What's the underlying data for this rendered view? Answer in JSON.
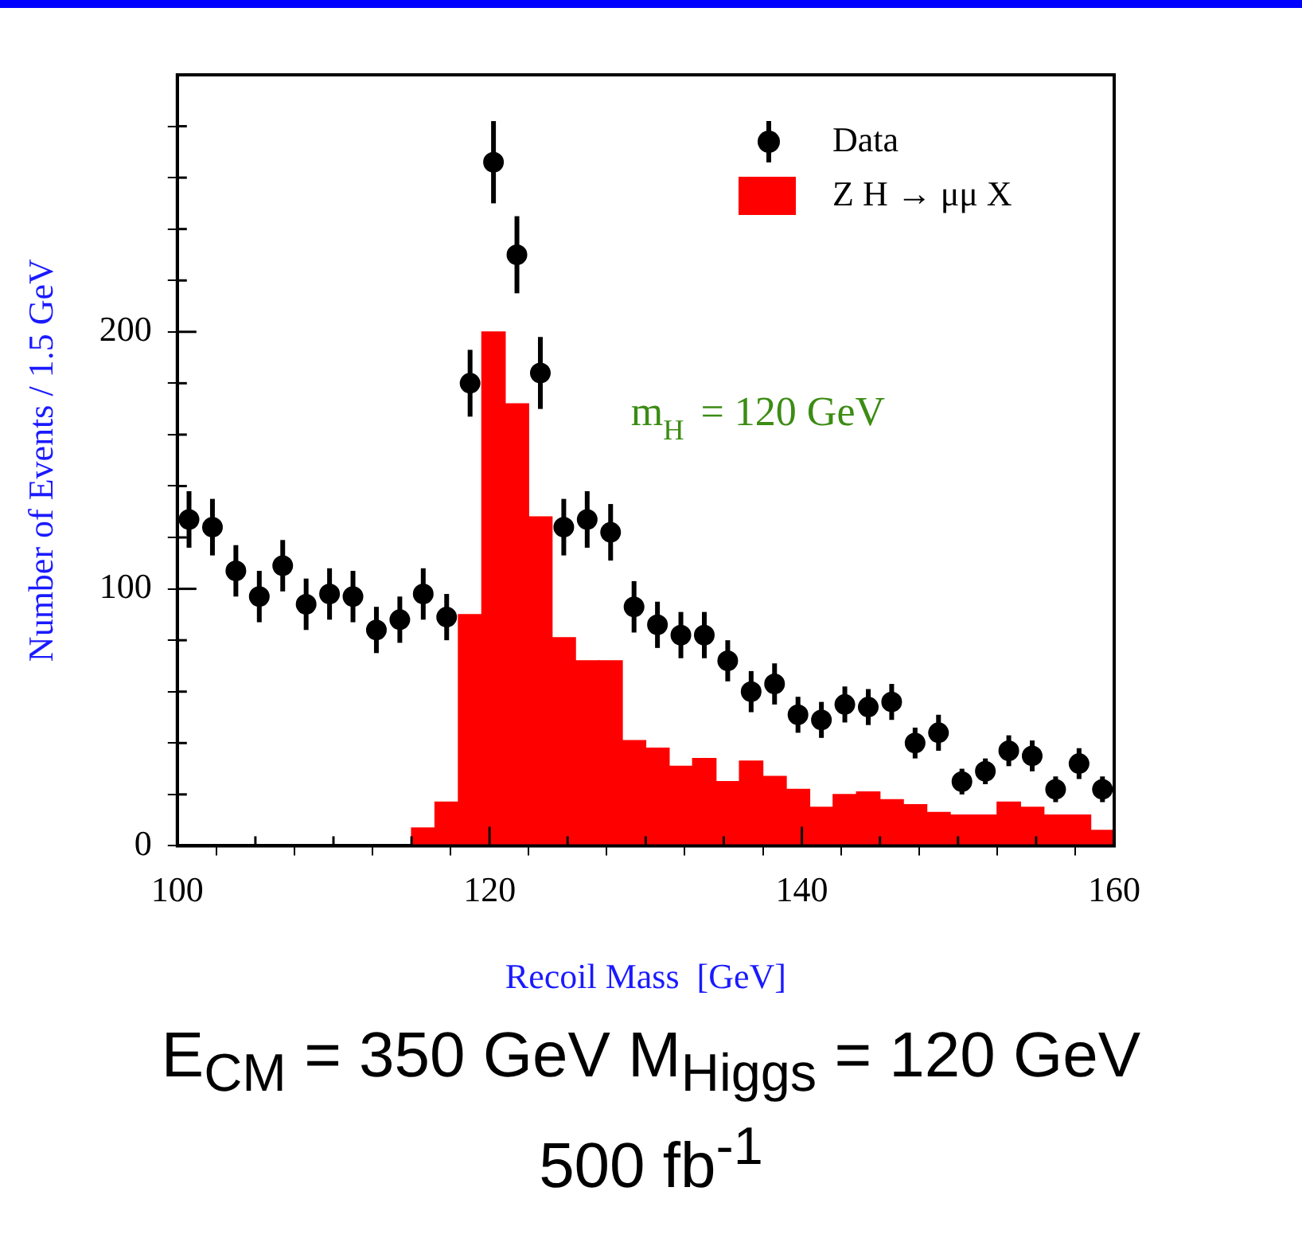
{
  "chart_data": {
    "type": "histogram",
    "xlabel": "Recoil Mass  [GeV]",
    "ylabel": "Number of Events / 1.5 GeV",
    "xlim": [
      100,
      160
    ],
    "xticks": [
      100,
      {
        "value": 105,
        "label": null
      },
      {
        "value": 110,
        "label": null
      },
      {
        "value": 115,
        "label": null
      },
      120,
      {
        "value": 125,
        "label": null
      },
      {
        "value": 130,
        "label": null
      },
      {
        "value": 135,
        "label": null
      },
      140,
      {
        "value": 145,
        "label": null
      },
      {
        "value": 150,
        "label": null
      },
      {
        "value": 155,
        "label": null
      },
      160
    ],
    "ylim": [
      0,
      300
    ],
    "yticks": [
      0,
      {
        "value": 20,
        "label": null
      },
      {
        "value": 40,
        "label": null
      },
      {
        "value": 60,
        "label": null
      },
      {
        "value": 80,
        "label": null
      },
      100,
      {
        "value": 120,
        "label": null
      },
      {
        "value": 140,
        "label": null
      },
      {
        "value": 160,
        "label": null
      },
      {
        "value": 180,
        "label": null
      },
      200,
      {
        "value": 220,
        "label": null
      },
      {
        "value": 240,
        "label": null
      },
      {
        "value": 260,
        "label": null
      },
      {
        "value": 280,
        "label": null
      }
    ],
    "grid": false,
    "legend": "top right",
    "series": [
      {
        "name": "Z H → μμ X",
        "type": "histogram",
        "color": "#ff0000",
        "bins": [
          100,
          101.5,
          103,
          104.5,
          106,
          107.5,
          109,
          110.5,
          112,
          113.5,
          115,
          116.5,
          118,
          119.5,
          121,
          122.5,
          124,
          125.5,
          127,
          128.5,
          130,
          131.5,
          133,
          134.5,
          136,
          137.5,
          139,
          140.5,
          142,
          143.5,
          145,
          146.5,
          148,
          149.5,
          151,
          152.5,
          154,
          155.5,
          157,
          158.5,
          160
        ],
        "values": [
          0,
          0,
          0,
          0,
          0,
          0,
          0,
          0,
          0,
          0,
          7,
          17,
          90,
          200,
          172,
          128,
          81,
          72,
          72,
          41,
          38,
          31,
          34,
          25,
          33,
          27,
          22,
          15,
          20,
          21,
          18,
          16,
          13,
          12,
          12,
          17,
          15,
          12,
          12,
          6
        ]
      },
      {
        "name": "Data",
        "type": "scatter",
        "color": "#000000",
        "marker": "circle",
        "x": [
          100.75,
          102.25,
          103.75,
          105.25,
          106.75,
          108.25,
          109.75,
          111.25,
          112.75,
          114.25,
          115.75,
          117.25,
          118.75,
          120.25,
          121.75,
          123.25,
          124.75,
          126.25,
          127.75,
          129.25,
          130.75,
          132.25,
          133.75,
          135.25,
          136.75,
          138.25,
          139.75,
          141.25,
          142.75,
          144.25,
          145.75,
          147.25,
          148.75,
          150.25,
          151.75,
          153.25,
          154.75,
          156.25,
          157.75,
          159.25
        ],
        "values": [
          127,
          124,
          107,
          97,
          109,
          94,
          98,
          97,
          84,
          88,
          98,
          89,
          180,
          266,
          230,
          184,
          124,
          127,
          122,
          93,
          86,
          82,
          82,
          72,
          60,
          63,
          51,
          49,
          55,
          54,
          56,
          40,
          44,
          25,
          29,
          37,
          35,
          22,
          32,
          22
        ],
        "errors": [
          11,
          11,
          10,
          10,
          10,
          10,
          10,
          10,
          9,
          9,
          10,
          9,
          13,
          16,
          15,
          14,
          11,
          11,
          11,
          10,
          9,
          9,
          9,
          8,
          8,
          8,
          7,
          7,
          7,
          7,
          7,
          6,
          7,
          5,
          5,
          6,
          6,
          5,
          6,
          5
        ]
      }
    ],
    "annotations": [
      "m$_{H}$ = 120 GeV",
      "E$_{CM}$ = 350 GeV M$_{Higgs}$ = 120 GeV",
      "500 fb$^{-1}$"
    ]
  }
}
